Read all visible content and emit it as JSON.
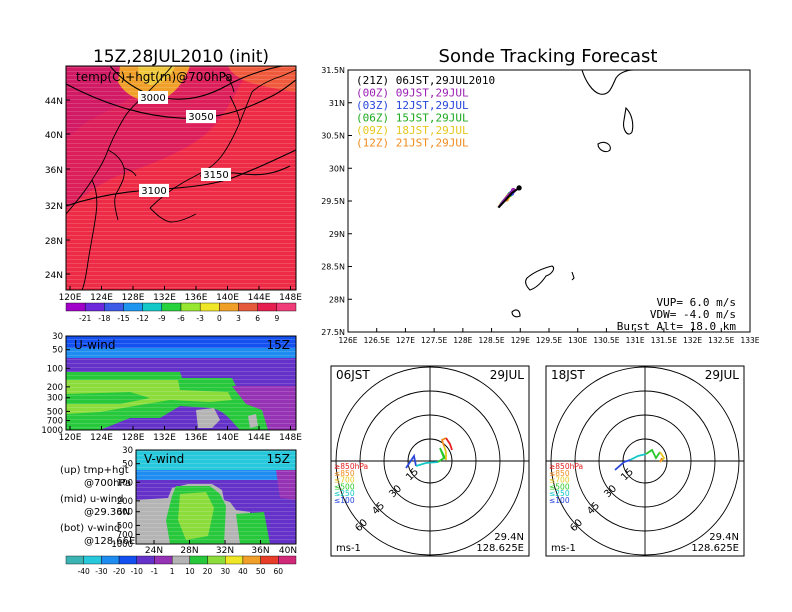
{
  "header": {
    "left_title": "15Z,28JUL2010 (init)",
    "right_title": "Sonde Tracking Forecast"
  },
  "map_panel": {
    "label": "temp(C)+hgt(m)@700hPa",
    "y_ticks": [
      "44N",
      "40N",
      "36N",
      "32N",
      "28N",
      "24N"
    ],
    "x_ticks": [
      "120E",
      "124E",
      "128E",
      "132E",
      "136E",
      "140E",
      "144E",
      "148E"
    ],
    "contour_labels": [
      "3000",
      "3050",
      "3100",
      "3150"
    ],
    "colorbar_labels": [
      "-21",
      "-18",
      "-15",
      "-12",
      "-9",
      "-6",
      "-3",
      "0",
      "3",
      "6",
      "9"
    ],
    "colorbar_colors": [
      "#a000c8",
      "#6e28dc",
      "#3c5ae6",
      "#1e96f0",
      "#14c8c8",
      "#28d23c",
      "#96e632",
      "#f0e628",
      "#f0a028",
      "#e65a3c",
      "#e61e50",
      "#f03c78"
    ]
  },
  "u_wind_panel": {
    "label": "U-wind",
    "time": "15Z",
    "y_ticks": [
      "30",
      "50",
      "100",
      "200",
      "300",
      "500",
      "700",
      "1000"
    ],
    "x_ticks": [
      "120E",
      "124E",
      "128E",
      "132E",
      "136E",
      "140E",
      "144E",
      "148E"
    ]
  },
  "v_wind_panel": {
    "label": "V-wind",
    "time": "15Z",
    "y_ticks": [
      "30",
      "50",
      "100",
      "200",
      "300",
      "500",
      "700",
      "1000"
    ],
    "x_ticks": [
      "24N",
      "28N",
      "32N",
      "36N",
      "40N"
    ],
    "colorbar_labels": [
      "-40",
      "-30",
      "-20",
      "-10",
      "-1",
      "1",
      "10",
      "20",
      "30",
      "40",
      "50",
      "60"
    ],
    "colorbar_colors": [
      "#3cb4b4",
      "#28c8dc",
      "#1e8cf0",
      "#1450f0",
      "#6432c8",
      "#9632b4",
      "#b4b4b4",
      "#28c83c",
      "#8cdc3c",
      "#f0e628",
      "#f0a028",
      "#e63c28",
      "#d2287a"
    ]
  },
  "legend_notes": {
    "line1a": "(up) tmp+hgt",
    "line1b": "@700hPa",
    "line2a": "(mid) u-wind",
    "line2b": "@29.36N",
    "line3a": "(bot) v-wind",
    "line3b": "@128.66E"
  },
  "track_panel": {
    "entries": [
      {
        "label": "(21Z) 06JST,29JUL2010",
        "color": "#000000"
      },
      {
        "label": "(00Z) 09JST,29JUL",
        "color": "#9b1fb4"
      },
      {
        "label": "(03Z) 12JST,29JUL",
        "color": "#2846dc"
      },
      {
        "label": "(06Z) 15JST,29JUL",
        "color": "#1eaa1e"
      },
      {
        "label": "(09Z) 18JST,29JUL",
        "color": "#e6c81e"
      },
      {
        "label": "(12Z) 21JST,29JUL",
        "color": "#f08c1e"
      }
    ],
    "y_ticks": [
      "31.5N",
      "31N",
      "30.5N",
      "30N",
      "29.5N",
      "29N",
      "28.5N",
      "28N",
      "27.5N"
    ],
    "x_ticks": [
      "126E",
      "126.5E",
      "127E",
      "127.5E",
      "128E",
      "128.5E",
      "129E",
      "129.5E",
      "130E",
      "130.5E",
      "131E",
      "131.5E",
      "132E",
      "132.5E",
      "133E"
    ],
    "vup": "VUP= 6.0 m/s",
    "vdw": "VDW= -4.0 m/s",
    "burst": "Burst Alt= 18.0 km"
  },
  "hodo_left": {
    "time": "06JST",
    "date": "29JUL",
    "ring_labels": [
      "15",
      "30",
      "45",
      "60"
    ],
    "levels": [
      {
        "label": "≥850hPa",
        "color": "#e61e1e"
      },
      {
        "label": "≤850",
        "color": "#f08c1e"
      },
      {
        "label": "≤700",
        "color": "#e6c81e"
      },
      {
        "label": "≤500",
        "color": "#28c828"
      },
      {
        "label": "≤250",
        "color": "#14c8c8"
      },
      {
        "label": "≤100",
        "color": "#2846dc"
      }
    ],
    "units": "ms-1",
    "lat": "29.4N",
    "lon": "128.625E"
  },
  "hodo_right": {
    "time": "18JST",
    "date": "29JUL",
    "ring_labels": [
      "15",
      "30",
      "45",
      "60"
    ],
    "levels": [
      {
        "label": "≥850hPa",
        "color": "#e61e1e"
      },
      {
        "label": "≤850",
        "color": "#f08c1e"
      },
      {
        "label": "≤700",
        "color": "#e6c81e"
      },
      {
        "label": "≤500",
        "color": "#28c828"
      },
      {
        "label": "≤250",
        "color": "#14c8c8"
      },
      {
        "label": "≤100",
        "color": "#2846dc"
      }
    ],
    "units": "ms-1",
    "lat": "29.4N",
    "lon": "128.625E"
  },
  "chart_data": [
    {
      "type": "heatmap",
      "title": "15Z,28JUL2010 (init)",
      "variable": "temp(C)+hgt(m)@700hPa",
      "xlim": [
        "120E",
        "148E"
      ],
      "ylim": [
        "22N",
        "48N"
      ],
      "contour_levels": [
        3000,
        3050,
        3100,
        3150
      ],
      "colorbar": [
        -21,
        -18,
        -15,
        -12,
        -9,
        -6,
        -3,
        0,
        3,
        6,
        9
      ]
    },
    {
      "type": "heatmap",
      "title": "U-wind",
      "time": "15Z",
      "x": [
        "120E",
        "148E"
      ],
      "pressure_levels_hPa": [
        30,
        50,
        100,
        200,
        300,
        500,
        700,
        1000
      ]
    },
    {
      "type": "heatmap",
      "title": "V-wind",
      "time": "15Z",
      "x": [
        "24N",
        "40N"
      ],
      "pressure_levels_hPa": [
        30,
        50,
        100,
        200,
        300,
        500,
        700,
        1000
      ],
      "colorbar": [
        -40,
        -30,
        -20,
        -10,
        -1,
        1,
        10,
        20,
        30,
        40,
        50,
        60
      ]
    },
    {
      "type": "line",
      "title": "Sonde Tracking Forecast",
      "xlim": [
        126,
        133
      ],
      "ylim": [
        27.5,
        31.5
      ],
      "series": [
        {
          "name": "(21Z) 06JST,29JUL2010",
          "points": [
            [
              128.62,
              29.4
            ],
            [
              128.75,
              29.52
            ],
            [
              128.85,
              29.62
            ],
            [
              128.98,
              29.7
            ]
          ]
        },
        {
          "name": "(00Z) 09JST,29JUL",
          "points": [
            [
              128.62,
              29.4
            ],
            [
              128.72,
              29.52
            ],
            [
              128.8,
              29.6
            ],
            [
              128.88,
              29.66
            ]
          ]
        },
        {
          "name": "(03Z) 12JST,29JUL",
          "points": [
            [
              128.62,
              29.4
            ],
            [
              128.7,
              29.5
            ],
            [
              128.78,
              29.58
            ],
            [
              128.85,
              29.62
            ]
          ]
        },
        {
          "name": "(06Z) 15JST,29JUL",
          "points": [
            [
              128.62,
              29.4
            ],
            [
              128.68,
              29.48
            ],
            [
              128.75,
              29.55
            ],
            [
              128.82,
              29.6
            ]
          ]
        },
        {
          "name": "(09Z) 18JST,29JUL",
          "points": [
            [
              128.62,
              29.4
            ],
            [
              128.66,
              29.46
            ],
            [
              128.72,
              29.52
            ],
            [
              128.78,
              29.56
            ]
          ]
        },
        {
          "name": "(12Z) 21JST,29JUL",
          "points": [
            [
              128.62,
              29.4
            ],
            [
              128.65,
              29.45
            ],
            [
              128.7,
              29.5
            ],
            [
              128.76,
              29.53
            ]
          ]
        }
      ]
    }
  ]
}
